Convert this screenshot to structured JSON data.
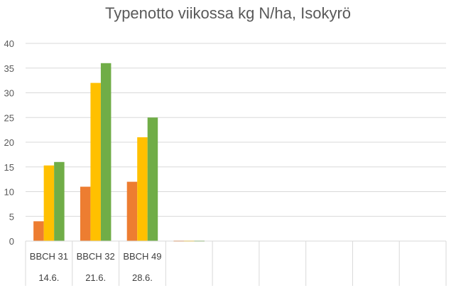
{
  "chart_data": {
    "type": "bar",
    "title": "Typenotto viikossa kg N/ha, Isokyrö",
    "categories": [
      [
        "BBCH 31",
        "14.6."
      ],
      [
        "BBCH 32",
        "21.6."
      ],
      [
        "BBCH 49",
        "28.6."
      ],
      [
        "",
        ""
      ],
      [
        "",
        ""
      ],
      [
        "",
        ""
      ],
      [
        "",
        ""
      ],
      [
        "",
        ""
      ],
      [
        "",
        ""
      ]
    ],
    "series": [
      {
        "color": "#ED7D31",
        "values": [
          4,
          11,
          12,
          0,
          null,
          null,
          null,
          null,
          null
        ]
      },
      {
        "color": "#FFC000",
        "values": [
          15.3,
          32,
          21,
          0,
          null,
          null,
          null,
          null,
          null
        ]
      },
      {
        "color": "#70AD47",
        "values": [
          16,
          36,
          25,
          0,
          null,
          null,
          null,
          null,
          null
        ]
      }
    ],
    "ylim": [
      0,
      40
    ],
    "yticks": [
      0,
      5,
      10,
      15,
      20,
      25,
      30,
      35,
      40
    ],
    "grid": true,
    "legend": "none"
  }
}
